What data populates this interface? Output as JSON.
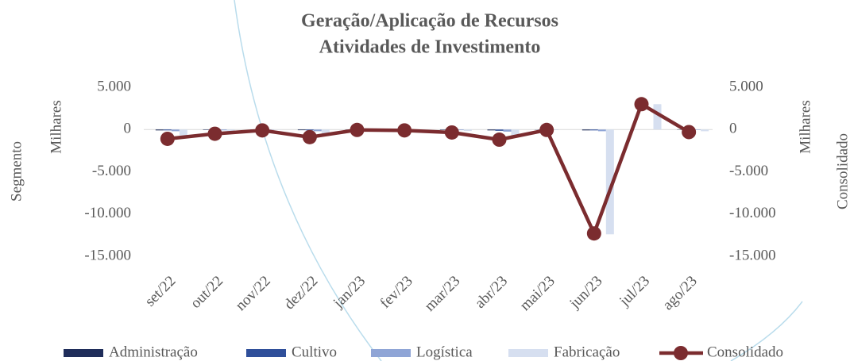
{
  "chart_data": {
    "type": "bar-line",
    "title": "Geração/Aplicação de Recursos",
    "subtitle": "Atividades de Investimento",
    "ylabel": "Segmento",
    "yunit": "Milhares",
    "y2label": "Consolidado",
    "y2unit": "Milhares",
    "categories": [
      "set/22",
      "out/22",
      "nov/22",
      "dez/22",
      "jan/23",
      "fev/23",
      "mar/23",
      "abr/23",
      "mai/23",
      "jun/23",
      "jul/23",
      "ago/23"
    ],
    "series": [
      {
        "name": "Administração",
        "type": "bar",
        "color": "#1f2d5a",
        "values": [
          -100,
          -50,
          -30,
          -80,
          -20,
          -30,
          -50,
          -100,
          -20,
          -100,
          0,
          -30
        ]
      },
      {
        "name": "Cultivo",
        "type": "bar",
        "color": "#2f4f9a",
        "values": [
          -100,
          -80,
          -20,
          -100,
          -10,
          -20,
          -50,
          -150,
          -10,
          -100,
          0,
          -20
        ]
      },
      {
        "name": "Logística",
        "type": "bar",
        "color": "#8fa5d6",
        "values": [
          -200,
          -100,
          -30,
          -200,
          -20,
          -30,
          -80,
          -250,
          -20,
          -200,
          0,
          -50
        ]
      },
      {
        "name": "Fabricação",
        "type": "bar",
        "color": "#d6dff0",
        "values": [
          -700,
          -270,
          -20,
          -520,
          0,
          -20,
          -170,
          -700,
          0,
          -12400,
          3000,
          -200
        ]
      },
      {
        "name": "Consolidado",
        "type": "line",
        "axis": "y2",
        "color": "#7b2c2f",
        "values": [
          -1100,
          -500,
          -100,
          -900,
          -50,
          -100,
          -350,
          -1200,
          -50,
          -12300,
          3000,
          -300
        ]
      }
    ],
    "ylim": [
      -15000,
      5000
    ],
    "yticks": [
      {
        "value": 5000,
        "label": "5.000"
      },
      0,
      {
        "value": -5000,
        "label": "-5.000"
      },
      {
        "value": -10000,
        "label": "-10.000"
      },
      {
        "value": -15000,
        "label": "-15.000"
      }
    ],
    "y2lim": [
      -15000,
      5000
    ],
    "y2ticks": [
      {
        "value": 5000,
        "label": "5.000"
      },
      0,
      {
        "value": -5000,
        "label": "-5.000"
      },
      {
        "value": -10000,
        "label": "-10.000"
      },
      {
        "value": -15000,
        "label": "-15.000"
      }
    ],
    "grid": false,
    "legend": "bottom"
  }
}
